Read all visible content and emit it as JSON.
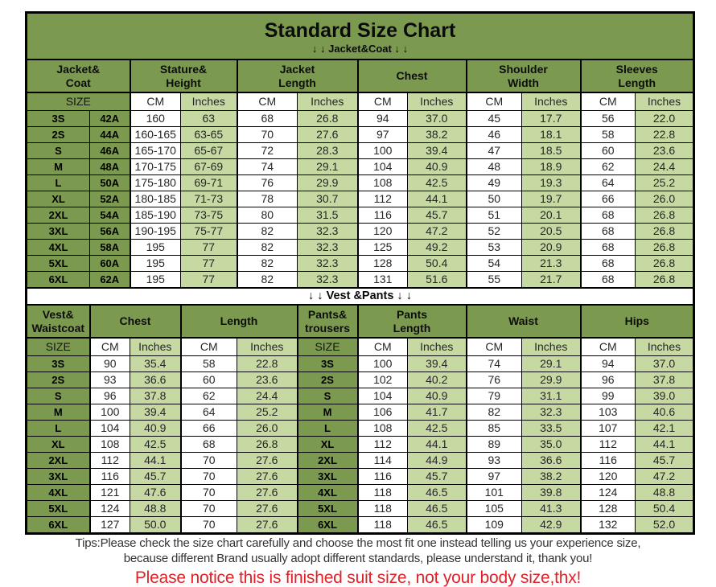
{
  "header": {
    "title": "Standard Size Chart",
    "jacket_banner": "↓ ↓  Jacket&Coat ↓ ↓"
  },
  "units": {
    "size": "SIZE",
    "cm": "CM",
    "inches": "Inches"
  },
  "jacket_table": {
    "groups": [
      "Jacket&\nCoat",
      "Stature&\nHeight",
      "Jacket\nLength",
      "Chest",
      "Shoulder\nWidth",
      "Sleeves\nLength"
    ],
    "rows": [
      [
        "3S",
        "42A",
        "160",
        "63",
        "68",
        "26.8",
        "94",
        "37.0",
        "45",
        "17.7",
        "56",
        "22.0"
      ],
      [
        "2S",
        "44A",
        "160-165",
        "63-65",
        "70",
        "27.6",
        "97",
        "38.2",
        "46",
        "18.1",
        "58",
        "22.8"
      ],
      [
        "S",
        "46A",
        "165-170",
        "65-67",
        "72",
        "28.3",
        "100",
        "39.4",
        "47",
        "18.5",
        "60",
        "23.6"
      ],
      [
        "M",
        "48A",
        "170-175",
        "67-69",
        "74",
        "29.1",
        "104",
        "40.9",
        "48",
        "18.9",
        "62",
        "24.4"
      ],
      [
        "L",
        "50A",
        "175-180",
        "69-71",
        "76",
        "29.9",
        "108",
        "42.5",
        "49",
        "19.3",
        "64",
        "25.2"
      ],
      [
        "XL",
        "52A",
        "180-185",
        "71-73",
        "78",
        "30.7",
        "112",
        "44.1",
        "50",
        "19.7",
        "66",
        "26.0"
      ],
      [
        "2XL",
        "54A",
        "185-190",
        "73-75",
        "80",
        "31.5",
        "116",
        "45.7",
        "51",
        "20.1",
        "68",
        "26.8"
      ],
      [
        "3XL",
        "56A",
        "190-195",
        "75-77",
        "82",
        "32.3",
        "120",
        "47.2",
        "52",
        "20.5",
        "68",
        "26.8"
      ],
      [
        "4XL",
        "58A",
        "195",
        "77",
        "82",
        "32.3",
        "125",
        "49.2",
        "53",
        "20.9",
        "68",
        "26.8"
      ],
      [
        "5XL",
        "60A",
        "195",
        "77",
        "82",
        "32.3",
        "128",
        "50.4",
        "54",
        "21.3",
        "68",
        "26.8"
      ],
      [
        "6XL",
        "62A",
        "195",
        "77",
        "82",
        "32.3",
        "131",
        "51.6",
        "55",
        "21.7",
        "68",
        "26.8"
      ]
    ]
  },
  "separator": {
    "vest_banner": "↓ ↓  Vest &Pants ↓ ↓"
  },
  "vest_table": {
    "groups": [
      "Vest&\nWaistcoat",
      "Chest",
      "Length",
      "Pants&\ntrousers",
      "Pants\nLength",
      "Waist",
      "Hips"
    ],
    "rows": [
      [
        "3S",
        "90",
        "35.4",
        "58",
        "22.8",
        "3S",
        "100",
        "39.4",
        "74",
        "29.1",
        "94",
        "37.0"
      ],
      [
        "2S",
        "93",
        "36.6",
        "60",
        "23.6",
        "2S",
        "102",
        "40.2",
        "76",
        "29.9",
        "96",
        "37.8"
      ],
      [
        "S",
        "96",
        "37.8",
        "62",
        "24.4",
        "S",
        "104",
        "40.9",
        "79",
        "31.1",
        "99",
        "39.0"
      ],
      [
        "M",
        "100",
        "39.4",
        "64",
        "25.2",
        "M",
        "106",
        "41.7",
        "82",
        "32.3",
        "103",
        "40.6"
      ],
      [
        "L",
        "104",
        "40.9",
        "66",
        "26.0",
        "L",
        "108",
        "42.5",
        "85",
        "33.5",
        "107",
        "42.1"
      ],
      [
        "XL",
        "108",
        "42.5",
        "68",
        "26.8",
        "XL",
        "112",
        "44.1",
        "89",
        "35.0",
        "112",
        "44.1"
      ],
      [
        "2XL",
        "112",
        "44.1",
        "70",
        "27.6",
        "2XL",
        "114",
        "44.9",
        "93",
        "36.6",
        "116",
        "45.7"
      ],
      [
        "3XL",
        "116",
        "45.7",
        "70",
        "27.6",
        "3XL",
        "116",
        "45.7",
        "97",
        "38.2",
        "120",
        "47.2"
      ],
      [
        "4XL",
        "121",
        "47.6",
        "70",
        "27.6",
        "4XL",
        "118",
        "46.5",
        "101",
        "39.8",
        "124",
        "48.8"
      ],
      [
        "5XL",
        "124",
        "48.8",
        "70",
        "27.6",
        "5XL",
        "118",
        "46.5",
        "105",
        "41.3",
        "128",
        "50.4"
      ],
      [
        "6XL",
        "127",
        "50.0",
        "70",
        "27.6",
        "6XL",
        "118",
        "46.5",
        "109",
        "42.9",
        "132",
        "52.0"
      ]
    ]
  },
  "footer": {
    "tips_line1": "Tips:Please check the size chart carefully and choose the most fit one instead telling us your experience size,",
    "tips_line2": "because different Brand usually adopt different standards, please understand it, thank you!",
    "notice": "Please notice this is finished suit size, not your body size,thx!"
  },
  "colors": {
    "header_green": "#7C9A4F",
    "light_green": "#C7D9A3",
    "notice_red": "#E02228",
    "border_black": "#000000"
  }
}
